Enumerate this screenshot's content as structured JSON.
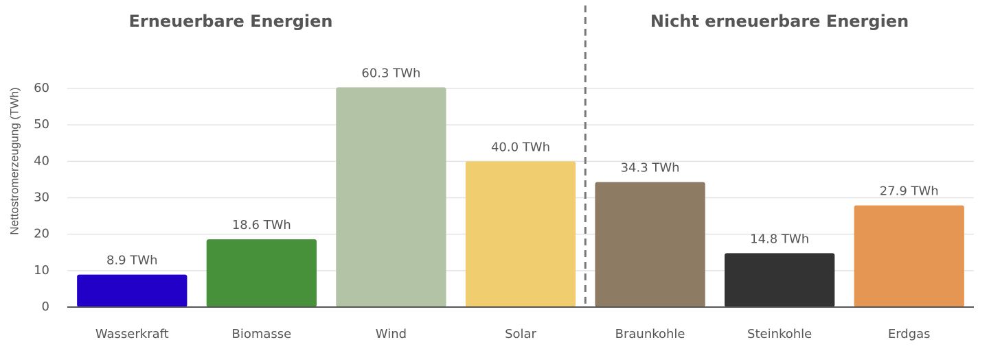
{
  "chart_data": {
    "type": "bar",
    "annotations": [
      "Erneuerbare Energien",
      "Nicht erneuerbare Energien"
    ],
    "y_label": "Nettostromerzeugung (TWh)",
    "categories": [
      "Wasserkraft",
      "Biomasse",
      "Wind",
      "Solar",
      "Braunkohle",
      "Steinkohle",
      "Erdgas"
    ],
    "values": [
      8.9,
      18.6,
      60.3,
      40.0,
      34.3,
      14.8,
      27.9
    ],
    "value_labels": [
      "8.9 TWh",
      "18.6 TWh",
      "60.3 TWh",
      "40.0 TWh",
      "34.3 TWh",
      "14.8 TWh",
      "27.9 TWh"
    ],
    "colors": [
      "#2200c8",
      "#48913b",
      "#b3c4a6",
      "#f0cd6e",
      "#8d7b63",
      "#333333",
      "#e59653"
    ],
    "ylim": [
      0,
      60
    ],
    "yticks": [
      0,
      10,
      20,
      30,
      40,
      50,
      60
    ],
    "grid": true
  }
}
